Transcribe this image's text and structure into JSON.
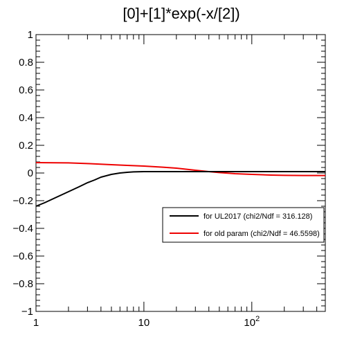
{
  "chart_data": {
    "type": "line",
    "title": "[0]+[1]*exp(-x/[2])",
    "xlabel": "",
    "ylabel": "",
    "xscale": "log",
    "xlim": [
      1,
      480
    ],
    "ylim": [
      -1,
      1
    ],
    "x_ticks": [
      {
        "value": 1,
        "label": "1",
        "sup": ""
      },
      {
        "value": 10,
        "label": "10",
        "sup": ""
      },
      {
        "value": 100,
        "label": "10",
        "sup": "2"
      }
    ],
    "y_ticks": [
      {
        "value": 1,
        "label": "1"
      },
      {
        "value": 0.8,
        "label": "0.8"
      },
      {
        "value": 0.6,
        "label": "0.6"
      },
      {
        "value": 0.4,
        "label": "0.4"
      },
      {
        "value": 0.2,
        "label": "0.2"
      },
      {
        "value": 0,
        "label": "0"
      },
      {
        "value": -0.2,
        "label": "−0.2"
      },
      {
        "value": -0.4,
        "label": "−0.4"
      },
      {
        "value": -0.6,
        "label": "−0.6"
      },
      {
        "value": -0.8,
        "label": "−0.8"
      },
      {
        "value": -1,
        "label": "−1"
      }
    ],
    "grid": false,
    "legend_position": "right-middle",
    "series": [
      {
        "name": "for UL2017 (chi2/Ndf = 316.128)",
        "color": "#000000",
        "x": [
          1,
          1.2,
          1.5,
          2,
          2.5,
          3,
          3.5,
          4,
          5,
          6,
          7,
          8,
          10,
          15,
          20,
          50,
          100,
          200,
          480
        ],
        "y": [
          -0.24,
          -0.215,
          -0.18,
          -0.135,
          -0.1,
          -0.07,
          -0.05,
          -0.03,
          -0.01,
          0.0,
          0.005,
          0.008,
          0.01,
          0.01,
          0.01,
          0.01,
          0.01,
          0.01,
          0.01
        ]
      },
      {
        "name": "for old param (chi2/Ndf = 46.5598)",
        "color": "#ee0000",
        "x": [
          1,
          2,
          3,
          5,
          7,
          10,
          15,
          20,
          30,
          40,
          50,
          70,
          100,
          150,
          200,
          300,
          480
        ],
        "y": [
          0.075,
          0.073,
          0.068,
          0.06,
          0.055,
          0.05,
          0.042,
          0.035,
          0.02,
          0.01,
          0.003,
          -0.005,
          -0.01,
          -0.015,
          -0.017,
          -0.018,
          -0.018
        ]
      }
    ]
  }
}
